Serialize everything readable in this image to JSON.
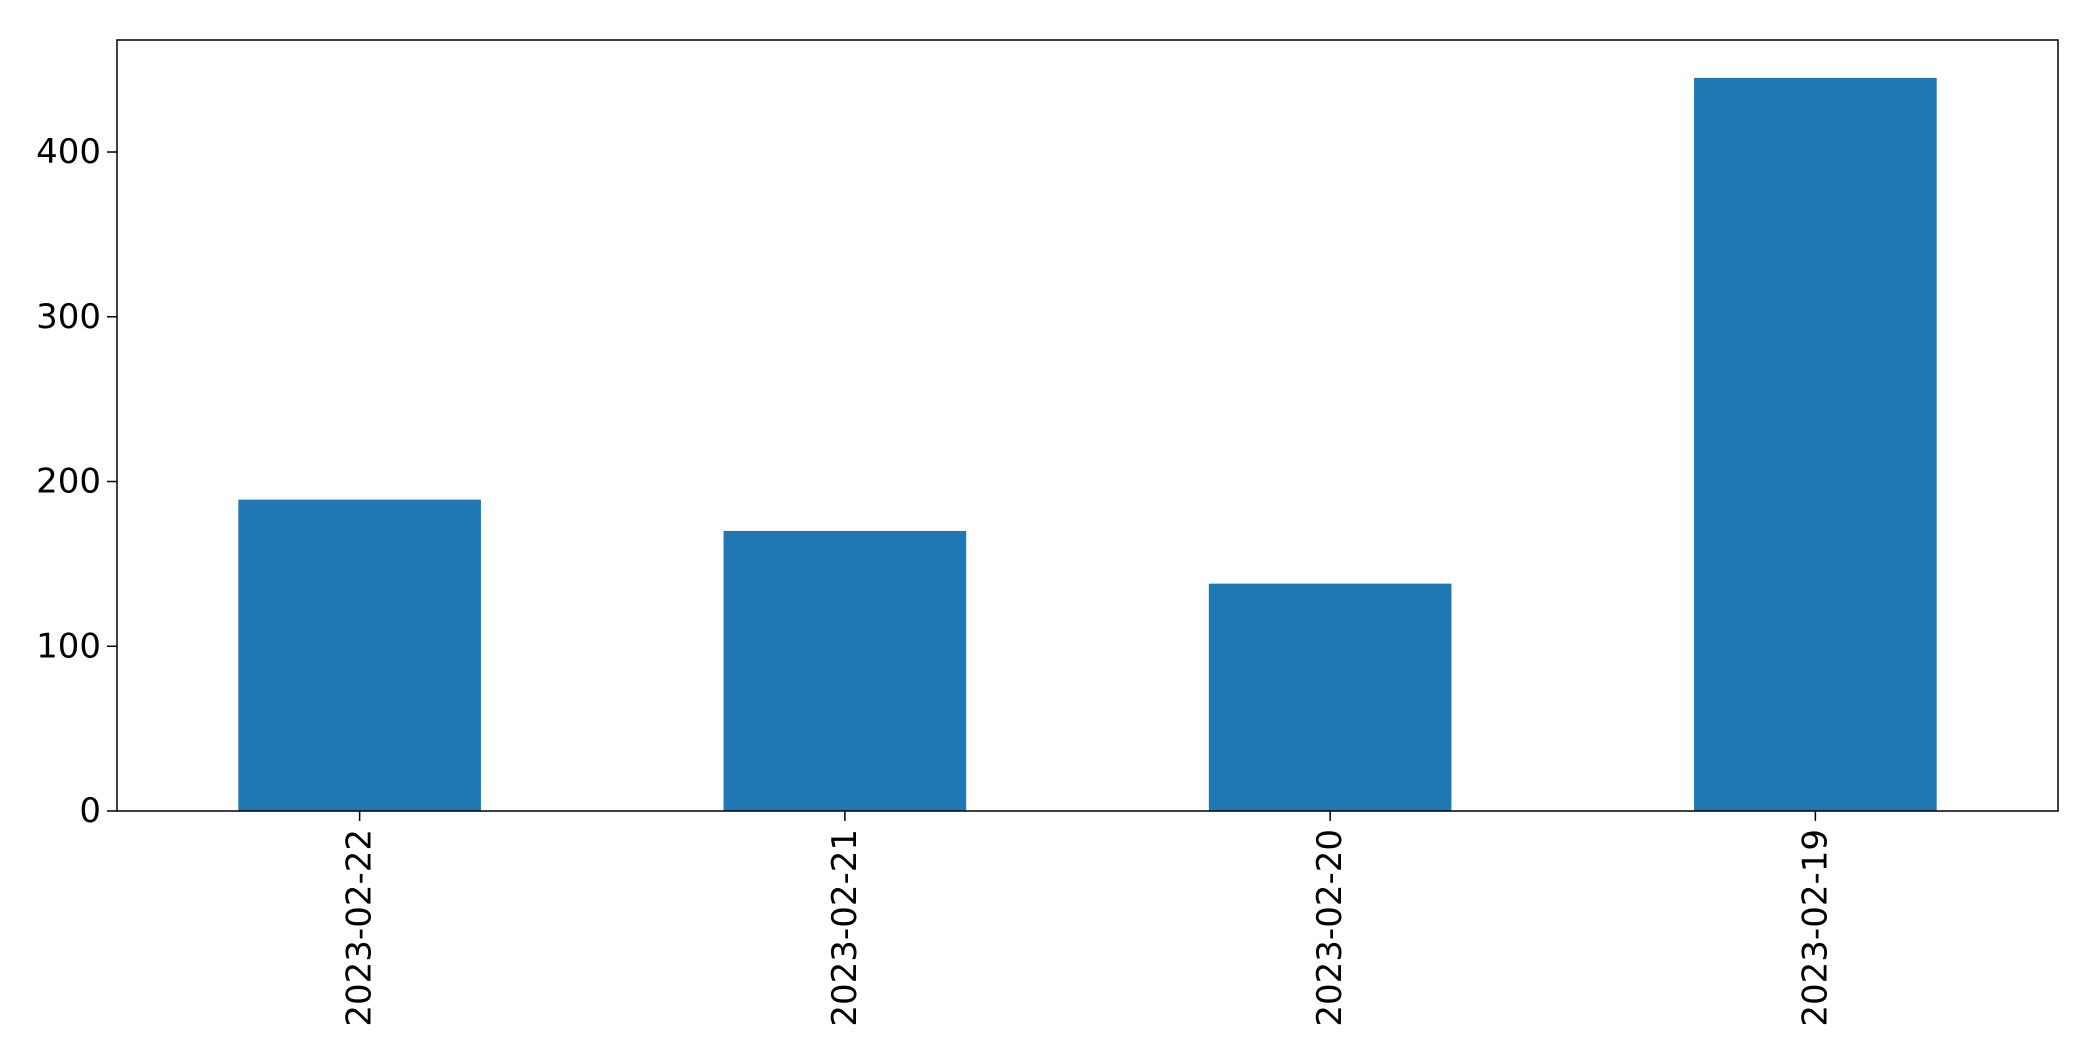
{
  "chart_data": {
    "type": "bar",
    "categories": [
      "2023-02-22",
      "2023-02-21",
      "2023-02-20",
      "2023-02-19"
    ],
    "values": [
      189,
      170,
      138,
      445
    ],
    "ylim": [
      0,
      468
    ],
    "yticks": [
      0,
      100,
      200,
      300,
      400
    ],
    "grid": false,
    "bar_color": "#1f77b4",
    "axis_color": "#000000"
  }
}
